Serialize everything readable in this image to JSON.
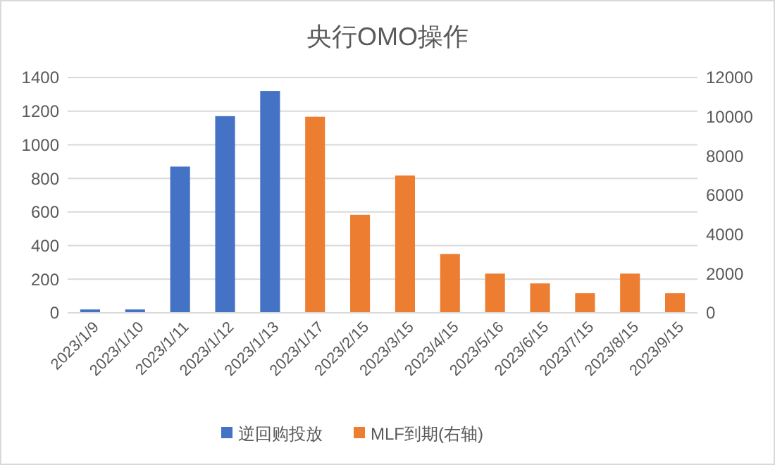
{
  "chart_data": {
    "type": "bar",
    "title": "央行OMO操作",
    "categories": [
      "2023/1/9",
      "2023/1/10",
      "2023/1/11",
      "2023/1/12",
      "2023/1/13",
      "2023/1/17",
      "2023/2/15",
      "2023/3/15",
      "2023/4/15",
      "2023/5/16",
      "2023/6/15",
      "2023/7/15",
      "2023/8/15",
      "2023/9/15"
    ],
    "series": [
      {
        "name": "逆回购投放",
        "color": "#4472c4",
        "values": [
          20,
          20,
          870,
          1170,
          1320,
          null,
          null,
          null,
          null,
          null,
          null,
          null,
          null,
          null
        ]
      },
      {
        "name": "MLF到期(右轴)",
        "color": "#ed7d31",
        "axis": "y2",
        "values": [
          null,
          null,
          null,
          null,
          null,
          10000,
          5000,
          7000,
          3000,
          2000,
          1500,
          1000,
          2000,
          1000
        ]
      }
    ],
    "ylim": [
      0,
      1400
    ],
    "yticks": [
      0,
      200,
      400,
      600,
      800,
      1000,
      1200,
      1400
    ],
    "y2lim": [
      0,
      12000
    ],
    "y2ticks": [
      0,
      2000,
      4000,
      6000,
      8000,
      10000,
      12000
    ],
    "grid": "y",
    "legend": "bottom"
  }
}
